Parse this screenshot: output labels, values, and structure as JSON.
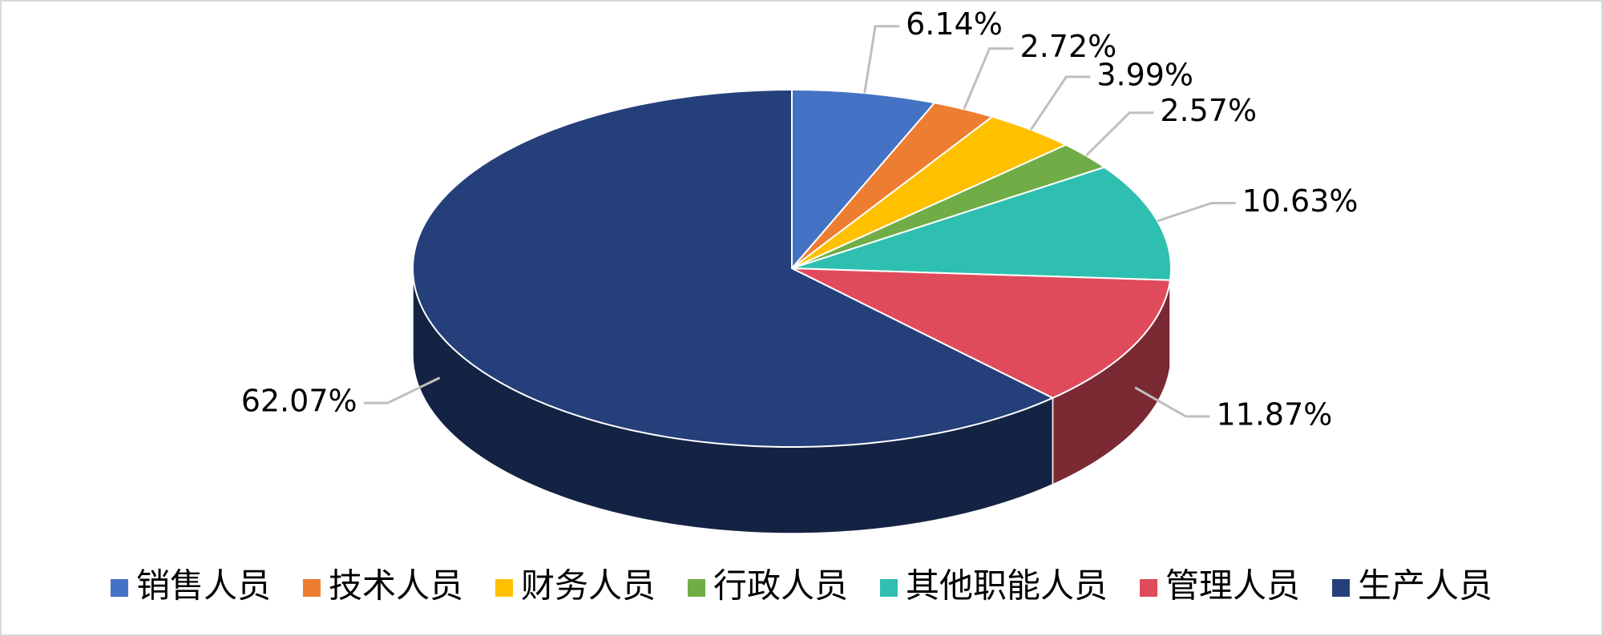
{
  "chart_data": {
    "type": "pie",
    "categories": [
      "销售人员",
      "技术人员",
      "财务人员",
      "行政人员",
      "其他职能人员",
      "管理人员",
      "生产人员"
    ],
    "values": [
      6.14,
      2.72,
      3.99,
      2.57,
      10.63,
      11.87,
      62.07
    ],
    "value_labels": [
      "6.14%",
      "2.72%",
      "3.99%",
      "2.57%",
      "10.63%",
      "11.87%",
      "62.07%"
    ],
    "colors": [
      "#4472c4",
      "#ed7d31",
      "#ffc000",
      "#70ad47",
      "#2fbfb0",
      "#e04b5c",
      "#253f7a"
    ],
    "legend": "bottom"
  }
}
